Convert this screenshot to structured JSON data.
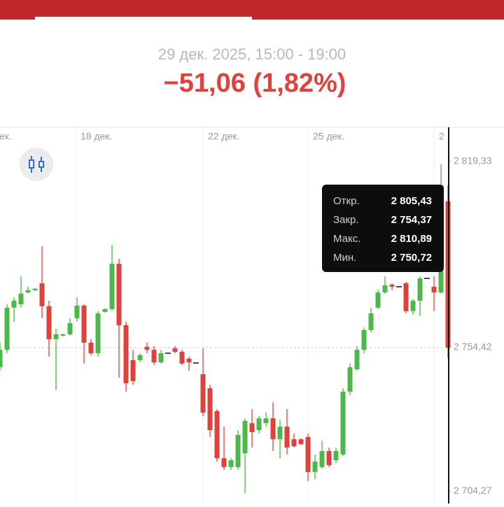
{
  "header": {
    "date_range": "29 дек. 2025, 15:00 - 19:00",
    "change": "−51,06 (1,82%)"
  },
  "chart_data": {
    "type": "candlestick",
    "x_labels": [
      "ек.",
      "18 дек.",
      "22 дек.",
      "25 дек.",
      "2"
    ],
    "open": [
      2747.5,
      2753.6,
      2768.3,
      2769.5,
      2773.6,
      2774.4,
      2776.8,
      2768.8,
      2757.3,
      2758.5,
      2759.0,
      2764.6,
      2769.0,
      2756.1,
      2752.4,
      2766.8,
      2767.8,
      2783.6,
      2762.2,
      2750.0,
      2750.0,
      2754.6,
      2753.6,
      2749.2,
      2752.4,
      2754.1,
      2752.9,
      2750.5,
      2749.0,
      2745.1,
      2740.2,
      2732.2,
      2715.8,
      2712.7,
      2712.7,
      2717.5,
      2728.0,
      2725.6,
      2728.0,
      2729.7,
      2722.4,
      2726.8,
      2722.4,
      2722.4,
      2723.2,
      2711.0,
      2712.7,
      2718.3,
      2715.1,
      2717.1,
      2739.0,
      2746.8,
      2753.6,
      2760.5,
      2768.3,
      2773.6,
      2776.3,
      2775.6,
      2776.8,
      2767.1,
      2770.7,
      2778.5,
      2775.6,
      2773.6,
      2805.43
    ],
    "high": [
      2756.1,
      2769.5,
      2771.9,
      2779.2,
      2775.6,
      2775.1,
      2789.7,
      2770.7,
      2761.0,
      2759.2,
      2764.6,
      2771.9,
      2769.5,
      2757.3,
      2767.1,
      2768.0,
      2790.2,
      2785.3,
      2763.4,
      2753.6,
      2752.4,
      2756.1,
      2754.9,
      2753.6,
      2752.4,
      2754.9,
      2753.6,
      2751.2,
      2749.0,
      2754.1,
      2741.4,
      2732.9,
      2726.8,
      2715.8,
      2725.6,
      2729.7,
      2732.9,
      2730.5,
      2731.7,
      2735.3,
      2729.3,
      2732.9,
      2724.4,
      2722.7,
      2724.4,
      2717.1,
      2721.9,
      2719.5,
      2719.5,
      2740.2,
      2748.8,
      2754.9,
      2761.4,
      2768.3,
      2774.6,
      2779.2,
      2776.8,
      2775.6,
      2777.3,
      2771.4,
      2779.2,
      2778.5,
      2779.2,
      2818.3,
      2810.89
    ],
    "low": [
      2746.3,
      2752.4,
      2763.4,
      2768.3,
      2773.2,
      2774.1,
      2764.6,
      2751.2,
      2739.5,
      2758.3,
      2758.5,
      2763.4,
      2748.8,
      2751.7,
      2751.2,
      2766.6,
      2767.1,
      2743.9,
      2739.0,
      2741.4,
      2749.2,
      2752.4,
      2748.3,
      2748.8,
      2752.4,
      2752.4,
      2748.3,
      2746.3,
      2749.0,
      2730.5,
      2723.2,
      2714.6,
      2711.7,
      2711.7,
      2711.7,
      2703.6,
      2719.5,
      2724.4,
      2726.8,
      2718.3,
      2715.8,
      2717.1,
      2719.5,
      2720.5,
      2707.8,
      2708.5,
      2712.2,
      2712.7,
      2714.1,
      2716.6,
      2737.8,
      2746.3,
      2752.4,
      2759.7,
      2767.8,
      2773.2,
      2774.4,
      2775.6,
      2766.3,
      2765.8,
      2765.3,
      2778.5,
      2767.1,
      2773.2,
      2750.72
    ],
    "close": [
      2753.6,
      2768.3,
      2770.7,
      2773.2,
      2774.4,
      2774.9,
      2768.8,
      2757.3,
      2759.0,
      2759.0,
      2762.9,
      2769.0,
      2756.1,
      2752.4,
      2766.3,
      2767.8,
      2783.6,
      2762.2,
      2741.9,
      2742.7,
      2751.7,
      2753.6,
      2749.2,
      2752.4,
      2752.4,
      2752.9,
      2748.8,
      2749.2,
      2749.0,
      2731.7,
      2725.6,
      2715.8,
      2712.7,
      2715.1,
      2723.9,
      2728.8,
      2724.9,
      2729.7,
      2729.7,
      2722.4,
      2726.8,
      2719.5,
      2720.0,
      2720.7,
      2711.0,
      2714.6,
      2718.3,
      2713.4,
      2718.3,
      2739.0,
      2747.5,
      2753.6,
      2760.5,
      2766.3,
      2773.6,
      2776.1,
      2775.6,
      2775.6,
      2767.1,
      2770.7,
      2778.5,
      2778.5,
      2773.6,
      2811.0,
      2754.37
    ],
    "ylim": [
      2700,
      2831.2
    ],
    "yticks": [
      {
        "value": 2819.33,
        "label": "2 819,33"
      },
      {
        "value": 2754.42,
        "label": "2 754,42"
      },
      {
        "value": 2704.27,
        "label": "2 704,27"
      }
    ],
    "up_color": "#4cb847",
    "down_color": "#e2403b"
  },
  "tooltip": {
    "labels": [
      "Откр.",
      "Закр.",
      "Макс.",
      "Мин."
    ],
    "value_labels": [
      "2 805,43",
      "2 754,37",
      "2 810,89",
      "2 750,72"
    ]
  }
}
